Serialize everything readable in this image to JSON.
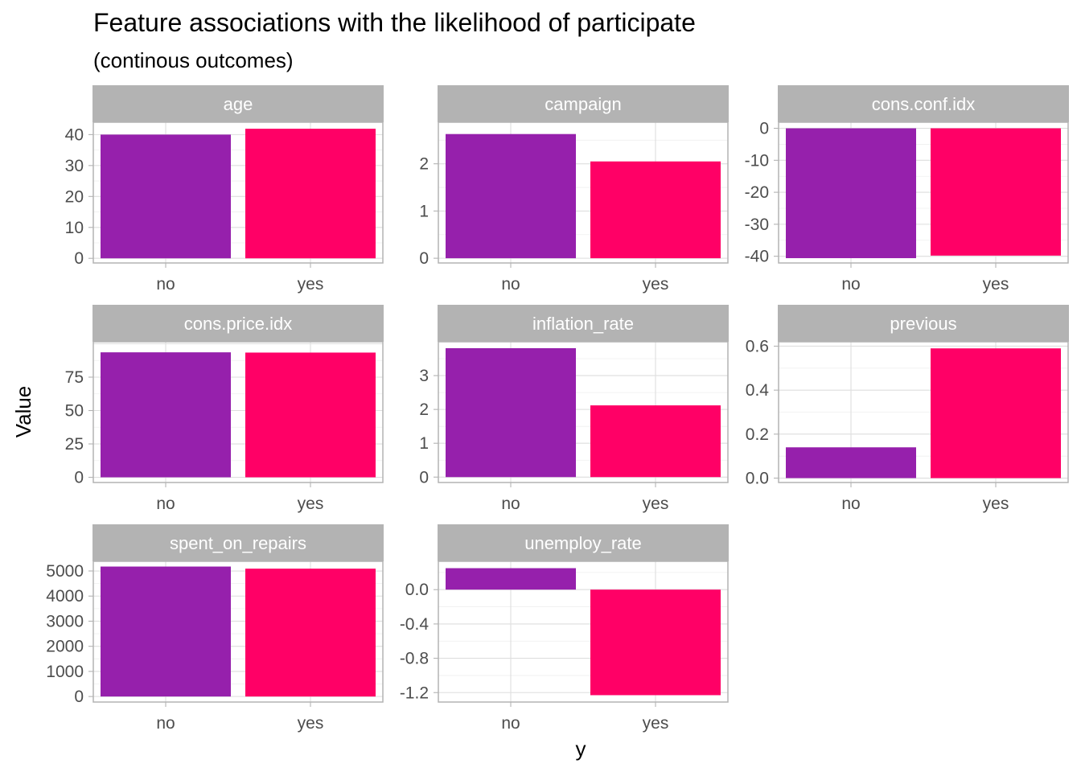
{
  "chart_data": {
    "type": "bar",
    "title": "Feature associations with the likelihood of participate",
    "subtitle": "(continous outcomes)",
    "xlabel": "y",
    "ylabel": "Value",
    "categories": [
      "no",
      "yes"
    ],
    "colors": [
      "#9620AC",
      "#FF0066"
    ],
    "grid": true,
    "facets": [
      {
        "name": "age",
        "values": [
          40.0,
          41.9
        ],
        "ylim": [
          -1.5,
          44.0
        ],
        "ticks": [
          0,
          10,
          20,
          30,
          40
        ]
      },
      {
        "name": "campaign",
        "values": [
          2.63,
          2.05
        ],
        "ylim": [
          -0.1,
          2.88
        ],
        "ticks": [
          0,
          1,
          2
        ]
      },
      {
        "name": "cons.conf.idx",
        "values": [
          -40.6,
          -39.8
        ],
        "ylim": [
          -42.1,
          1.9
        ],
        "ticks": [
          0,
          -10,
          -20,
          -30,
          -40
        ]
      },
      {
        "name": "cons.price.idx",
        "values": [
          93.6,
          93.4
        ],
        "ylim": [
          -3.9,
          101.5
        ],
        "ticks": [
          0,
          25,
          50,
          75
        ]
      },
      {
        "name": "inflation_rate",
        "values": [
          3.81,
          2.12
        ],
        "ylim": [
          -0.16,
          4.0
        ],
        "ticks": [
          0,
          1,
          2,
          3
        ]
      },
      {
        "name": "previous",
        "values": [
          0.14,
          0.59
        ],
        "ylim": [
          -0.02,
          0.62
        ],
        "ticks": [
          "0.0",
          "0.2",
          "0.4",
          "0.6"
        ]
      },
      {
        "name": "spent_on_repairs",
        "values": [
          5176,
          5093
        ],
        "ylim": [
          -220,
          5385
        ],
        "ticks": [
          0,
          1000,
          2000,
          3000,
          4000,
          5000
        ]
      },
      {
        "name": "unemploy_rate",
        "values": [
          0.25,
          -1.23
        ],
        "ylim": [
          -1.31,
          0.33
        ],
        "ticks": [
          "-1.2",
          "-0.8",
          "-0.4",
          "0.0"
        ]
      }
    ]
  }
}
